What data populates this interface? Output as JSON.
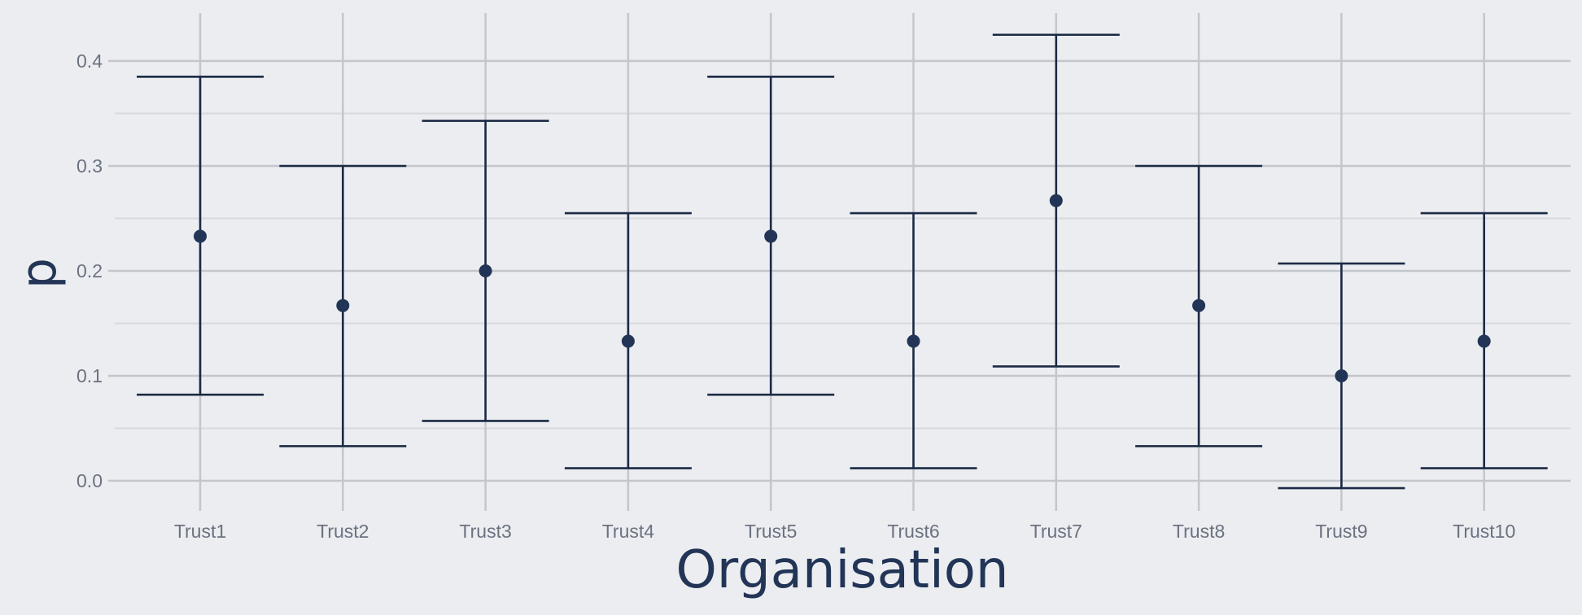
{
  "chart_data": {
    "type": "errorbar",
    "xlabel": "Organisation",
    "ylabel": "p",
    "ylim": [
      -0.035,
      0.445
    ],
    "yticks": [
      0.0,
      0.1,
      0.2,
      0.3,
      0.4
    ],
    "ytick_labels": [
      "0.0",
      "0.1",
      "0.2",
      "0.3",
      "0.4"
    ],
    "categories": [
      "Trust1",
      "Trust2",
      "Trust3",
      "Trust4",
      "Trust5",
      "Trust6",
      "Trust7",
      "Trust8",
      "Trust9",
      "Trust10"
    ],
    "values": [
      0.233,
      0.167,
      0.2,
      0.133,
      0.233,
      0.133,
      0.267,
      0.167,
      0.1,
      0.133
    ],
    "lower": [
      0.082,
      0.033,
      0.057,
      0.012,
      0.082,
      0.012,
      0.109,
      0.033,
      -0.007,
      0.012
    ],
    "upper": [
      0.385,
      0.3,
      0.343,
      0.255,
      0.385,
      0.255,
      0.425,
      0.3,
      0.207,
      0.255
    ],
    "grid": true,
    "colors": {
      "background": "#ebedf0",
      "grid_major": "#c3c6cb",
      "grid_minor": "#d7d9dd",
      "errorbar": "#1b2a45",
      "point": "#223557",
      "tick_text": "#6b7280",
      "title_text": "#223557"
    }
  }
}
